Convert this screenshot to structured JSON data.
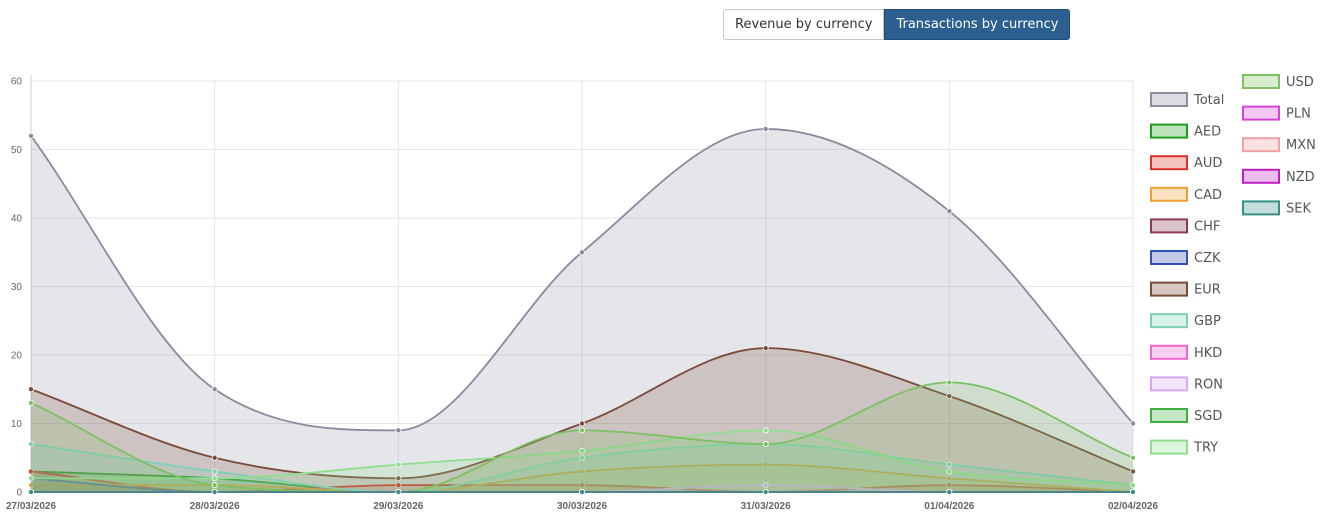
{
  "toggle": {
    "revenue_label": "Revenue by currency",
    "transactions_label": "Transactions by currency",
    "active": "transactions"
  },
  "chart_data": {
    "type": "area",
    "title": "",
    "xlabel": "",
    "ylabel": "",
    "ylim": [
      0,
      60
    ],
    "yticks": [
      0,
      10,
      20,
      30,
      40,
      50,
      60
    ],
    "grid": true,
    "legend_position": "right",
    "categories": [
      "27/03/2026",
      "28/03/2026",
      "29/03/2026",
      "30/03/2026",
      "31/03/2026",
      "01/04/2026",
      "02/04/2026"
    ],
    "series": [
      {
        "name": "Total",
        "color": "#8a8c9e",
        "values": [
          52,
          15,
          9,
          35,
          53,
          41,
          10
        ]
      },
      {
        "name": "AED",
        "color": "#1e9e1e",
        "values": [
          3,
          2,
          0,
          0,
          0,
          0,
          0
        ]
      },
      {
        "name": "AUD",
        "color": "#d9342b",
        "values": [
          3,
          0,
          1,
          1,
          0,
          1,
          0
        ]
      },
      {
        "name": "CAD",
        "color": "#f0a030",
        "values": [
          1,
          1,
          0,
          3,
          4,
          2,
          0
        ]
      },
      {
        "name": "CHF",
        "color": "#8b3a55",
        "values": [
          0,
          0,
          0,
          0,
          0,
          0,
          0
        ]
      },
      {
        "name": "CZK",
        "color": "#3450b4",
        "values": [
          2,
          0,
          0,
          0,
          0,
          0,
          0
        ]
      },
      {
        "name": "EUR",
        "color": "#7a4a3a",
        "values": [
          15,
          5,
          2,
          10,
          21,
          14,
          3
        ]
      },
      {
        "name": "GBP",
        "color": "#7fcfb5",
        "values": [
          7,
          3,
          0,
          5,
          7,
          4,
          1
        ]
      },
      {
        "name": "HKD",
        "color": "#f065d0",
        "values": [
          0,
          0,
          0,
          0,
          0,
          0,
          0
        ]
      },
      {
        "name": "RON",
        "color": "#d8a8f5",
        "values": [
          0,
          0,
          0,
          0,
          1,
          0,
          0
        ]
      },
      {
        "name": "SGD",
        "color": "#40b040",
        "values": [
          0,
          0,
          0,
          0,
          0,
          0,
          0
        ]
      },
      {
        "name": "TRY",
        "color": "#90de90",
        "values": [
          2,
          2,
          4,
          6,
          9,
          3,
          1
        ]
      },
      {
        "name": "USD",
        "color": "#7fbf65",
        "values": [
          13,
          1,
          0,
          9,
          7,
          16,
          5
        ]
      },
      {
        "name": "PLN",
        "color": "#d545d5",
        "values": [
          0,
          0,
          0,
          0,
          0,
          0,
          0
        ]
      },
      {
        "name": "MXN",
        "color": "#f0a0a0",
        "values": [
          0,
          0,
          0,
          0,
          0,
          0,
          0
        ]
      },
      {
        "name": "NZD",
        "color": "#c020c0",
        "values": [
          0,
          0,
          0,
          0,
          0,
          0,
          0
        ]
      },
      {
        "name": "SEK",
        "color": "#3a8f85",
        "values": [
          0,
          0,
          0,
          0,
          0,
          0,
          0
        ]
      }
    ]
  }
}
